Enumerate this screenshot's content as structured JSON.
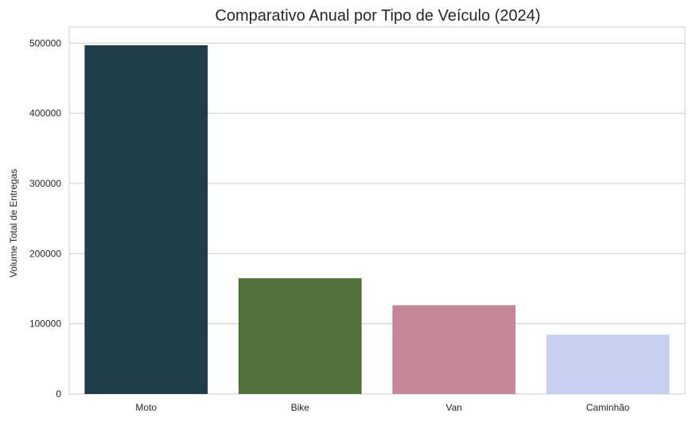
{
  "chart_data": {
    "type": "bar",
    "title": "Comparativo Anual por Tipo de Veículo (2024)",
    "xlabel": "",
    "ylabel": "Volume Total de Entregas",
    "categories": [
      "Moto",
      "Bike",
      "Van",
      "Caminhão"
    ],
    "values": [
      497000,
      165000,
      126500,
      84500
    ],
    "colors": [
      "#1f3c48",
      "#53713a",
      "#c58797",
      "#c8cfef"
    ],
    "ylim": [
      0,
      523000
    ],
    "yticks": [
      0,
      100000,
      200000,
      300000,
      400000,
      500000
    ],
    "grid": true
  }
}
